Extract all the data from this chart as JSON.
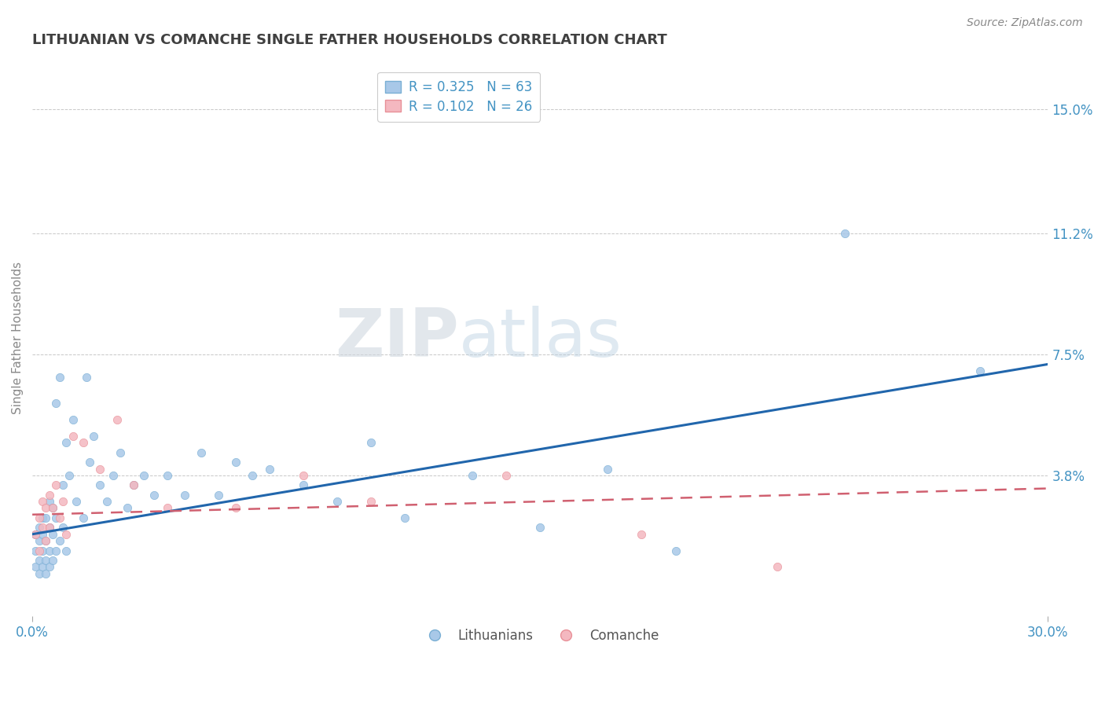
{
  "title": "LITHUANIAN VS COMANCHE SINGLE FATHER HOUSEHOLDS CORRELATION CHART",
  "source_text": "Source: ZipAtlas.com",
  "ylabel": "Single Father Households",
  "xlim": [
    0.0,
    0.3
  ],
  "ylim": [
    -0.005,
    0.165
  ],
  "xtick_labels": [
    "0.0%",
    "30.0%"
  ],
  "xtick_positions": [
    0.0,
    0.3
  ],
  "ytick_labels": [
    "3.8%",
    "7.5%",
    "11.2%",
    "15.0%"
  ],
  "ytick_positions": [
    0.038,
    0.075,
    0.112,
    0.15
  ],
  "watermark_zip": "ZIP",
  "watermark_atlas": "atlas",
  "blue_color": "#a8c8e8",
  "pink_color": "#f4b8c0",
  "blue_edge_color": "#7aafd4",
  "pink_edge_color": "#e89098",
  "blue_line_color": "#2166ac",
  "pink_line_color": "#d06070",
  "background_color": "#ffffff",
  "grid_color": "#c8c8c8",
  "title_color": "#404040",
  "axis_label_color": "#888888",
  "tick_label_color": "#4393c3",
  "legend_R_color": "#4393c3",
  "legend_N_color": "#4393c3",
  "legend_text_color": "#333333",
  "blue_scatter_x": [
    0.001,
    0.001,
    0.001,
    0.002,
    0.002,
    0.002,
    0.002,
    0.003,
    0.003,
    0.003,
    0.003,
    0.004,
    0.004,
    0.004,
    0.004,
    0.005,
    0.005,
    0.005,
    0.005,
    0.006,
    0.006,
    0.006,
    0.007,
    0.007,
    0.007,
    0.008,
    0.008,
    0.009,
    0.009,
    0.01,
    0.01,
    0.011,
    0.012,
    0.013,
    0.015,
    0.016,
    0.017,
    0.018,
    0.02,
    0.022,
    0.024,
    0.026,
    0.028,
    0.03,
    0.033,
    0.036,
    0.04,
    0.045,
    0.05,
    0.055,
    0.06,
    0.065,
    0.07,
    0.08,
    0.09,
    0.1,
    0.11,
    0.13,
    0.15,
    0.17,
    0.19,
    0.24,
    0.28
  ],
  "blue_scatter_y": [
    0.01,
    0.015,
    0.02,
    0.008,
    0.012,
    0.018,
    0.022,
    0.01,
    0.015,
    0.02,
    0.025,
    0.008,
    0.012,
    0.018,
    0.025,
    0.01,
    0.015,
    0.022,
    0.03,
    0.012,
    0.02,
    0.028,
    0.015,
    0.025,
    0.06,
    0.018,
    0.068,
    0.022,
    0.035,
    0.015,
    0.048,
    0.038,
    0.055,
    0.03,
    0.025,
    0.068,
    0.042,
    0.05,
    0.035,
    0.03,
    0.038,
    0.045,
    0.028,
    0.035,
    0.038,
    0.032,
    0.038,
    0.032,
    0.045,
    0.032,
    0.042,
    0.038,
    0.04,
    0.035,
    0.03,
    0.048,
    0.025,
    0.038,
    0.022,
    0.04,
    0.015,
    0.112,
    0.07
  ],
  "pink_scatter_x": [
    0.001,
    0.002,
    0.002,
    0.003,
    0.003,
    0.004,
    0.004,
    0.005,
    0.005,
    0.006,
    0.007,
    0.008,
    0.009,
    0.01,
    0.012,
    0.015,
    0.02,
    0.025,
    0.03,
    0.04,
    0.06,
    0.08,
    0.1,
    0.14,
    0.18,
    0.22
  ],
  "pink_scatter_y": [
    0.02,
    0.025,
    0.015,
    0.03,
    0.022,
    0.028,
    0.018,
    0.032,
    0.022,
    0.028,
    0.035,
    0.025,
    0.03,
    0.02,
    0.05,
    0.048,
    0.04,
    0.055,
    0.035,
    0.028,
    0.028,
    0.038,
    0.03,
    0.038,
    0.02,
    0.01
  ],
  "blue_trend_x": [
    0.0,
    0.3
  ],
  "blue_trend_y": [
    0.02,
    0.072
  ],
  "pink_trend_x": [
    0.0,
    0.3
  ],
  "pink_trend_y": [
    0.026,
    0.034
  ]
}
